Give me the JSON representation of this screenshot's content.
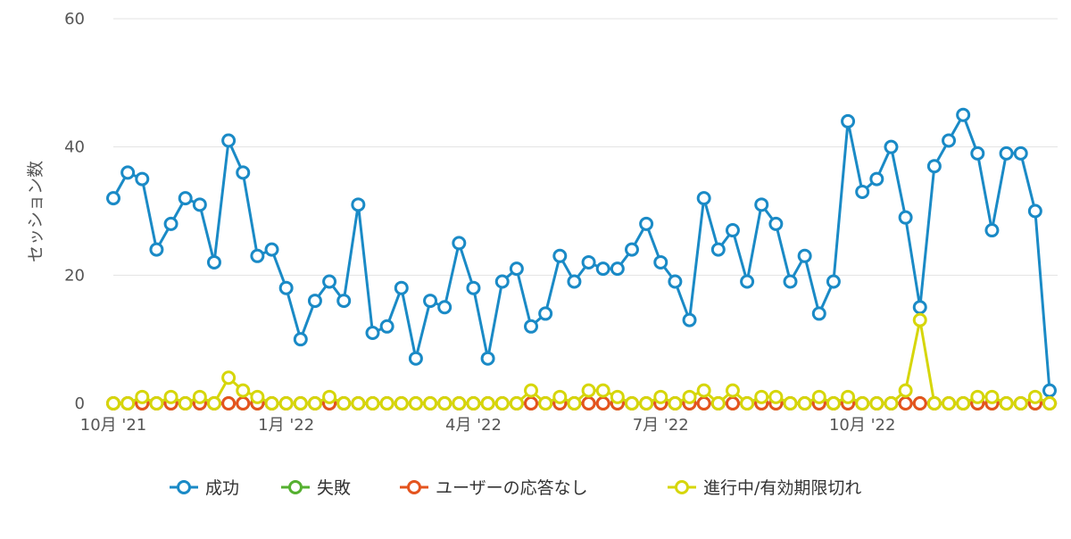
{
  "chart_data": {
    "type": "line",
    "ylabel": "セッション数",
    "ylim": [
      0,
      60
    ],
    "yticks": [
      0,
      20,
      40,
      60
    ],
    "xlim": [
      0,
      66
    ],
    "xtick_labels": [
      {
        "x": 0,
        "label": "10月 '21"
      },
      {
        "x": 12,
        "label": "1月 '22"
      },
      {
        "x": 25,
        "label": "4月 '22"
      },
      {
        "x": 38,
        "label": "7月 '22"
      },
      {
        "x": 52,
        "label": "10月 '22"
      }
    ],
    "grid": true,
    "legend_position": "bottom",
    "series": [
      {
        "name": "成功",
        "color": "#1a8ac6",
        "values": [
          32,
          36,
          35,
          24,
          28,
          32,
          31,
          22,
          41,
          36,
          23,
          24,
          18,
          10,
          16,
          19,
          16,
          31,
          11,
          12,
          18,
          7,
          16,
          15,
          25,
          18,
          7,
          19,
          21,
          12,
          14,
          23,
          19,
          22,
          21,
          21,
          24,
          28,
          22,
          19,
          13,
          32,
          24,
          27,
          19,
          31,
          28,
          19,
          23,
          14,
          19,
          44,
          33,
          35,
          40,
          29,
          15,
          37,
          41,
          45,
          39,
          27,
          39,
          39,
          30,
          2
        ]
      },
      {
        "name": "失敗",
        "color": "#55b030",
        "values": [
          0,
          0,
          0,
          0,
          0,
          0,
          0,
          0,
          0,
          0,
          0,
          0,
          0,
          0,
          0,
          0,
          0,
          0,
          0,
          0,
          0,
          0,
          0,
          0,
          0,
          0,
          0,
          0,
          0,
          0,
          0,
          0,
          0,
          0,
          0,
          0,
          0,
          0,
          0,
          0,
          0,
          0,
          0,
          0,
          0,
          0,
          0,
          0,
          0,
          0,
          0,
          0,
          0,
          0,
          0,
          0,
          0,
          0,
          0,
          0,
          0,
          0,
          0,
          0,
          0,
          0
        ]
      },
      {
        "name": "ユーザーの応答なし",
        "color": "#e4541e",
        "values": [
          0,
          0,
          0,
          0,
          0,
          0,
          0,
          0,
          0,
          0,
          0,
          0,
          0,
          0,
          0,
          0,
          0,
          0,
          0,
          0,
          0,
          0,
          0,
          0,
          0,
          0,
          0,
          0,
          0,
          0,
          0,
          0,
          0,
          0,
          0,
          0,
          0,
          0,
          0,
          0,
          0,
          0,
          0,
          0,
          0,
          0,
          0,
          0,
          0,
          0,
          0,
          0,
          0,
          0,
          0,
          0,
          0,
          0,
          0,
          0,
          0,
          0,
          0,
          0,
          0,
          0
        ]
      },
      {
        "name": "進行中/有効期限切れ",
        "color": "#d6d60a",
        "values": [
          0,
          0,
          1,
          0,
          1,
          0,
          1,
          0,
          4,
          2,
          1,
          0,
          0,
          0,
          0,
          1,
          0,
          0,
          0,
          0,
          0,
          0,
          0,
          0,
          0,
          0,
          0,
          0,
          0,
          2,
          0,
          1,
          0,
          2,
          2,
          1,
          0,
          0,
          1,
          0,
          1,
          2,
          0,
          2,
          0,
          1,
          1,
          0,
          0,
          1,
          0,
          1,
          0,
          0,
          0,
          2,
          13,
          0,
          0,
          0,
          1,
          1,
          0,
          0,
          1,
          0
        ]
      }
    ]
  }
}
